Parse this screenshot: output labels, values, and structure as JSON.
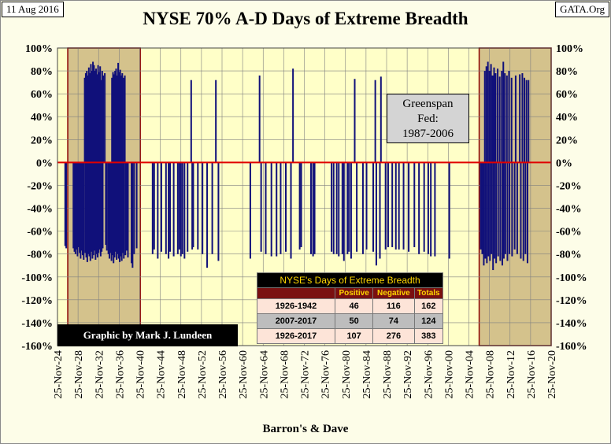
{
  "header": {
    "date": "11 Aug 2016",
    "source": "GATA.Org",
    "title": "NYSE 70% A-D Days of Extreme Breadth"
  },
  "credit": "Graphic by Mark J. Lundeen",
  "annotation": {
    "line1": "Greenspan",
    "line2": "Fed:",
    "line3": "1987-2006"
  },
  "xlabel": "Barron's & Dave",
  "colors": {
    "bar": "#10107a",
    "zero_line": "#e00000",
    "plot_bg": "#ffffc8",
    "shade": "#d4c28c",
    "shade_border": "#8b0000",
    "grid": "#808080"
  },
  "table": {
    "title": "NYSE's Days of Extreme Breadth",
    "headers": [
      "",
      "Positive",
      "Negative",
      "Totals"
    ],
    "rows": [
      {
        "period": "1926-1942",
        "positive": "46",
        "negative": "116",
        "totals": "162"
      },
      {
        "period": "2007-2017",
        "positive": "50",
        "negative": "74",
        "totals": "124"
      },
      {
        "period": "1926-2017",
        "positive": "107",
        "negative": "276",
        "totals": "383"
      }
    ]
  },
  "chart_data": {
    "type": "bar",
    "title": "NYSE 70% A-D Days of Extreme Breadth",
    "xlabel": "Barron's & Dave",
    "ylabel": "",
    "ylim": [
      -160,
      100
    ],
    "y_ticks": [
      "100%",
      "80%",
      "60%",
      "40%",
      "20%",
      "0%",
      "-20%",
      "-40%",
      "-60%",
      "-80%",
      "-100%",
      "-120%",
      "-140%",
      "-160%"
    ],
    "x_ticks": [
      "25-Nov-24",
      "25-Nov-28",
      "25-Nov-32",
      "25-Nov-36",
      "25-Nov-40",
      "25-Nov-44",
      "25-Nov-48",
      "25-Nov-52",
      "25-Nov-56",
      "25-Nov-60",
      "25-Nov-64",
      "25-Nov-68",
      "25-Nov-72",
      "25-Nov-76",
      "25-Nov-80",
      "25-Nov-84",
      "25-Nov-88",
      "25-Nov-92",
      "25-Nov-96",
      "25-Nov-00",
      "25-Nov-04",
      "25-Nov-08",
      "25-Nov-12",
      "25-Nov-16",
      "25-Nov-20"
    ],
    "xlim_years": [
      1924.9,
      2020.9
    ],
    "shaded_periods": [
      [
        1926.9,
        1941.0
      ],
      [
        2006.9,
        2020.9
      ]
    ],
    "grid": true,
    "series": [
      {
        "positive_days": [
          [
            1930.2,
            74
          ],
          [
            1930.4,
            78
          ],
          [
            1930.6,
            80
          ],
          [
            1930.8,
            76
          ],
          [
            1931.0,
            83
          ],
          [
            1931.2,
            78
          ],
          [
            1931.4,
            86
          ],
          [
            1931.6,
            80
          ],
          [
            1931.8,
            88
          ],
          [
            1932.0,
            85
          ],
          [
            1932.2,
            80
          ],
          [
            1932.4,
            82
          ],
          [
            1932.6,
            77
          ],
          [
            1932.8,
            85
          ],
          [
            1933.0,
            79
          ],
          [
            1933.2,
            84
          ],
          [
            1933.4,
            72
          ],
          [
            1933.6,
            80
          ],
          [
            1933.8,
            76
          ],
          [
            1934.1,
            78
          ],
          [
            1935.5,
            74
          ],
          [
            1935.7,
            79
          ],
          [
            1935.9,
            77
          ],
          [
            1936.1,
            80
          ],
          [
            1936.3,
            82
          ],
          [
            1936.5,
            76
          ],
          [
            1936.7,
            87
          ],
          [
            1936.9,
            79
          ],
          [
            1937.1,
            81
          ],
          [
            1937.3,
            76
          ],
          [
            1937.5,
            78
          ],
          [
            1937.7,
            74
          ],
          [
            1938.0,
            76
          ],
          [
            1950.9,
            72
          ],
          [
            1955.7,
            72
          ],
          [
            1964.2,
            76
          ],
          [
            1970.7,
            82
          ],
          [
            1982.7,
            73
          ],
          [
            1986.7,
            72
          ],
          [
            1987.8,
            75
          ],
          [
            2008.0,
            80
          ],
          [
            2008.3,
            84
          ],
          [
            2008.6,
            88
          ],
          [
            2008.9,
            80
          ],
          [
            2009.2,
            86
          ],
          [
            2009.5,
            76
          ],
          [
            2009.8,
            83
          ],
          [
            2010.1,
            78
          ],
          [
            2010.5,
            82
          ],
          [
            2010.9,
            75
          ],
          [
            2011.3,
            80
          ],
          [
            2011.6,
            88
          ],
          [
            2011.9,
            78
          ],
          [
            2012.3,
            76
          ],
          [
            2012.7,
            80
          ],
          [
            2013.2,
            74
          ],
          [
            2014.0,
            76
          ],
          [
            2014.8,
            77
          ],
          [
            2015.3,
            78
          ],
          [
            2015.7,
            74
          ],
          [
            2016.1,
            72
          ],
          [
            2016.5,
            72
          ]
        ],
        "negative_days": [
          [
            1926.4,
            -73
          ],
          [
            1926.6,
            -75
          ],
          [
            1928.0,
            -75
          ],
          [
            1928.2,
            -78
          ],
          [
            1928.4,
            -80
          ],
          [
            1928.6,
            -76
          ],
          [
            1928.8,
            -82
          ],
          [
            1929.0,
            -74
          ],
          [
            1929.2,
            -79
          ],
          [
            1929.4,
            -84
          ],
          [
            1929.6,
            -77
          ],
          [
            1929.8,
            -81
          ],
          [
            1930.0,
            -85
          ],
          [
            1930.3,
            -79
          ],
          [
            1930.5,
            -83
          ],
          [
            1930.7,
            -87
          ],
          [
            1930.9,
            -80
          ],
          [
            1931.1,
            -82
          ],
          [
            1931.3,
            -86
          ],
          [
            1931.5,
            -78
          ],
          [
            1931.7,
            -84
          ],
          [
            1931.9,
            -81
          ],
          [
            1932.1,
            -77
          ],
          [
            1932.3,
            -85
          ],
          [
            1932.5,
            -80
          ],
          [
            1932.7,
            -83
          ],
          [
            1932.9,
            -79
          ],
          [
            1933.1,
            -76
          ],
          [
            1933.3,
            -82
          ],
          [
            1933.5,
            -78
          ],
          [
            1933.7,
            -75
          ],
          [
            1934.3,
            -72
          ],
          [
            1934.5,
            -77
          ],
          [
            1934.8,
            -80
          ],
          [
            1935.0,
            -84
          ],
          [
            1935.2,
            -79
          ],
          [
            1935.4,
            -86
          ],
          [
            1935.6,
            -81
          ],
          [
            1935.8,
            -88
          ],
          [
            1936.0,
            -83
          ],
          [
            1936.2,
            -78
          ],
          [
            1936.4,
            -85
          ],
          [
            1936.6,
            -80
          ],
          [
            1936.8,
            -84
          ],
          [
            1937.0,
            -87
          ],
          [
            1937.2,
            -82
          ],
          [
            1937.4,
            -86
          ],
          [
            1937.6,
            -79
          ],
          [
            1937.8,
            -84
          ],
          [
            1938.1,
            -81
          ],
          [
            1938.3,
            -77
          ],
          [
            1938.6,
            -83
          ],
          [
            1939.3,
            -88
          ],
          [
            1939.5,
            -92
          ],
          [
            1939.8,
            -80
          ],
          [
            1940.3,
            -75
          ],
          [
            1943.4,
            -80
          ],
          [
            1943.7,
            -76
          ],
          [
            1944.4,
            -84
          ],
          [
            1945.1,
            -78
          ],
          [
            1946.0,
            -80
          ],
          [
            1946.5,
            -84
          ],
          [
            1946.8,
            -78
          ],
          [
            1947.5,
            -82
          ],
          [
            1948.3,
            -80
          ],
          [
            1948.6,
            -76
          ],
          [
            1948.9,
            -82
          ],
          [
            1949.2,
            -80
          ],
          [
            1949.6,
            -84
          ],
          [
            1950.2,
            -78
          ],
          [
            1951.1,
            -76
          ],
          [
            1951.3,
            -74
          ],
          [
            1952.2,
            -76
          ],
          [
            1953.1,
            -80
          ],
          [
            1954.0,
            -92
          ],
          [
            1955.0,
            -80
          ],
          [
            1956.2,
            -86
          ],
          [
            1962.4,
            -84
          ],
          [
            1964.5,
            -78
          ],
          [
            1965.4,
            -80
          ],
          [
            1966.5,
            -82
          ],
          [
            1967.5,
            -82
          ],
          [
            1968.3,
            -80
          ],
          [
            1969.3,
            -78
          ],
          [
            1970.3,
            -84
          ],
          [
            1972.0,
            -76
          ],
          [
            1972.3,
            -74
          ],
          [
            1974.2,
            -80
          ],
          [
            1974.6,
            -82
          ],
          [
            1974.9,
            -80
          ],
          [
            1978.2,
            -78
          ],
          [
            1978.6,
            -80
          ],
          [
            1979.2,
            -80
          ],
          [
            1979.6,
            -82
          ],
          [
            1980.3,
            -80
          ],
          [
            1980.6,
            -86
          ],
          [
            1981.3,
            -80
          ],
          [
            1981.6,
            -78
          ],
          [
            1982.0,
            -84
          ],
          [
            1983.1,
            -78
          ],
          [
            1984.3,
            -80
          ],
          [
            1985.0,
            -76
          ],
          [
            1986.3,
            -78
          ],
          [
            1986.9,
            -90
          ],
          [
            1987.6,
            -84
          ],
          [
            1988.7,
            -76
          ],
          [
            1989.2,
            -74
          ],
          [
            1990.0,
            -74
          ],
          [
            1990.7,
            -76
          ],
          [
            1991.3,
            -76
          ],
          [
            1992.2,
            -76
          ],
          [
            1993.2,
            -78
          ],
          [
            1994.3,
            -74
          ],
          [
            1995.2,
            -80
          ],
          [
            1996.2,
            -78
          ],
          [
            1997.0,
            -80
          ],
          [
            1997.5,
            -82
          ],
          [
            1998.3,
            -82
          ],
          [
            2001.1,
            -84
          ],
          [
            2007.2,
            -76
          ],
          [
            2007.5,
            -80
          ],
          [
            2007.8,
            -90
          ],
          [
            2008.1,
            -84
          ],
          [
            2008.4,
            -88
          ],
          [
            2008.7,
            -82
          ],
          [
            2009.0,
            -86
          ],
          [
            2009.3,
            -80
          ],
          [
            2009.6,
            -94
          ],
          [
            2009.9,
            -84
          ],
          [
            2010.2,
            -88
          ],
          [
            2010.6,
            -82
          ],
          [
            2011.0,
            -86
          ],
          [
            2011.4,
            -90
          ],
          [
            2011.7,
            -84
          ],
          [
            2012.0,
            -80
          ],
          [
            2012.4,
            -86
          ],
          [
            2012.8,
            -80
          ],
          [
            2013.3,
            -82
          ],
          [
            2013.8,
            -76
          ],
          [
            2014.3,
            -80
          ],
          [
            2015.0,
            -84
          ],
          [
            2015.5,
            -86
          ],
          [
            2015.9,
            -80
          ],
          [
            2016.3,
            -88
          ]
        ]
      }
    ]
  }
}
